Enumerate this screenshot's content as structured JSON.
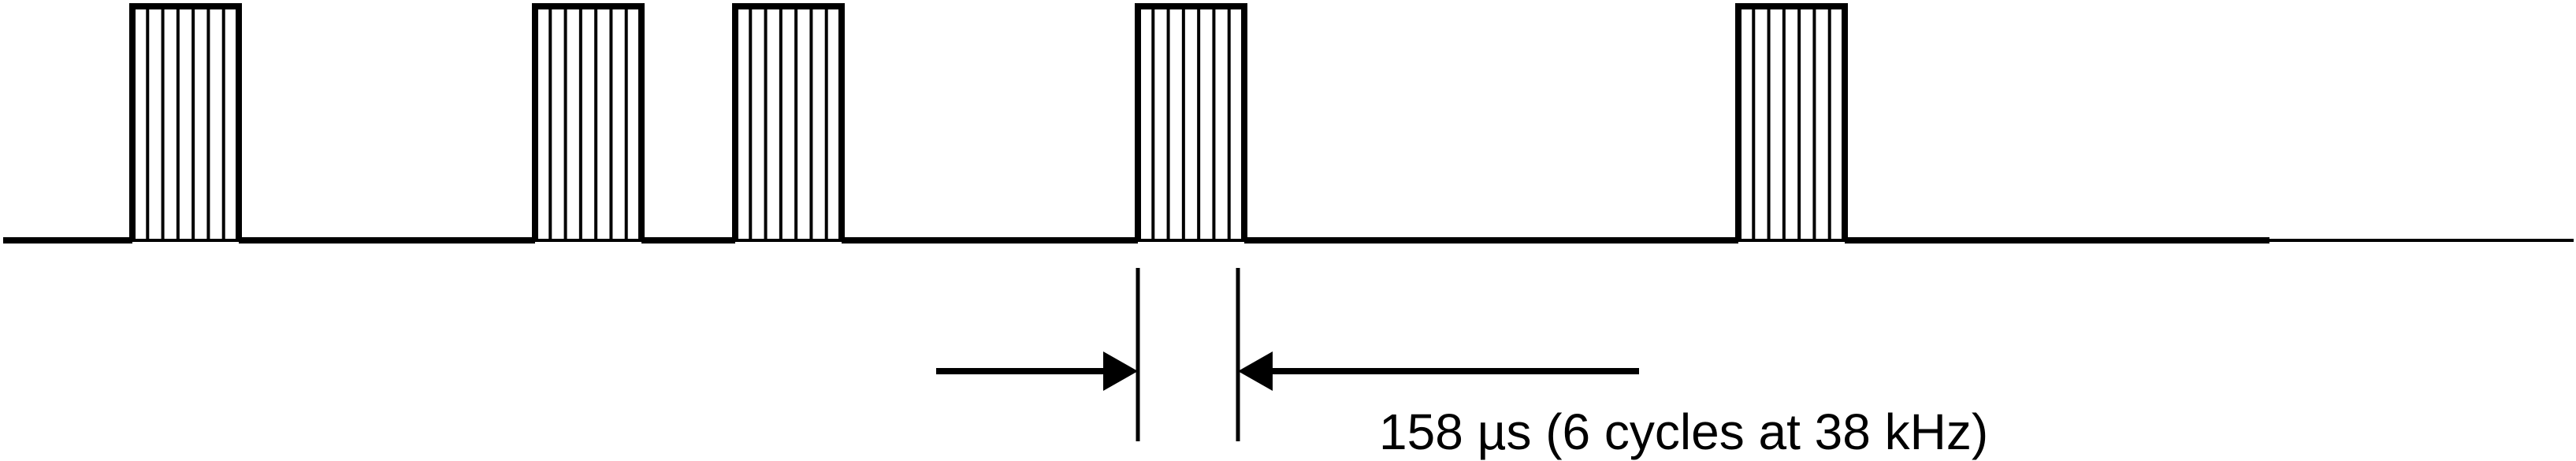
{
  "diagram": {
    "measurement_label": "158 µs (6 cycles at 38 kHz)",
    "pulse_count": 5,
    "cycles_per_pulse": 6,
    "colors": {
      "stroke": "#000000",
      "background": "#ffffff"
    }
  }
}
